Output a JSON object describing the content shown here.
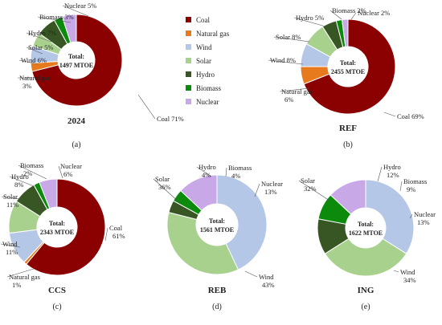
{
  "legend": [
    {
      "name": "Coal",
      "color": "#8b0000"
    },
    {
      "name": "Natural gas",
      "color": "#e87a1e"
    },
    {
      "name": "Wind",
      "color": "#b4c7e7"
    },
    {
      "name": "Solar",
      "color": "#a9d18e"
    },
    {
      "name": "Hydro",
      "color": "#375623"
    },
    {
      "name": "Biomass",
      "color": "#0b8a0b"
    },
    {
      "name": "Nuclear",
      "color": "#c9a8e8"
    }
  ],
  "chart_data": [
    {
      "type": "pie",
      "name": "2024",
      "tag": "(a)",
      "center_title": "Total:",
      "center_value": "1497 MTOE",
      "slices": [
        {
          "name": "Coal",
          "value": 71,
          "label": "Coal 71%"
        },
        {
          "name": "Natural gas",
          "value": 3,
          "label": "Natural gas 3%"
        },
        {
          "name": "Wind",
          "value": 6,
          "label": "Wind 6%"
        },
        {
          "name": "Solar",
          "value": 5,
          "label": "Solar 5%"
        },
        {
          "name": "Hydro",
          "value": 7,
          "label": "Hydro 7%"
        },
        {
          "name": "Biomass",
          "value": 3,
          "label": "Biomass 3%"
        },
        {
          "name": "Nuclear",
          "value": 5,
          "label": "Nuclear 5%"
        }
      ]
    },
    {
      "type": "pie",
      "name": "REF",
      "tag": "(b)",
      "center_title": "Total:",
      "center_value": "2455 MTOE",
      "slices": [
        {
          "name": "Coal",
          "value": 69,
          "label": "Coal 69%"
        },
        {
          "name": "Natural gas",
          "value": 6,
          "label": "Natural gas 6%"
        },
        {
          "name": "Wind",
          "value": 8,
          "label": "Wind 8%"
        },
        {
          "name": "Solar",
          "value": 8,
          "label": "Solar 8%"
        },
        {
          "name": "Hydro",
          "value": 5,
          "label": "Hydro 5%"
        },
        {
          "name": "Biomass",
          "value": 2,
          "label": "Biomass 2%"
        },
        {
          "name": "Nuclear",
          "value": 2,
          "label": "Nuclear 2%"
        }
      ]
    },
    {
      "type": "pie",
      "name": "CCS",
      "tag": "(c)",
      "center_title": "Total:",
      "center_value": "2343 MTOE",
      "slices": [
        {
          "name": "Coal",
          "value": 61,
          "label": "Coal 61%"
        },
        {
          "name": "Natural gas",
          "value": 1,
          "label": "Natural gas 1%"
        },
        {
          "name": "Wind",
          "value": 11,
          "label": "Wind 11%"
        },
        {
          "name": "Solar",
          "value": 11,
          "label": "Solar 11%"
        },
        {
          "name": "Hydro",
          "value": 8,
          "label": "Hydro 8%"
        },
        {
          "name": "Biomass",
          "value": 2,
          "label": "Biomass 2%"
        },
        {
          "name": "Nuclear",
          "value": 6,
          "label": "Nuclear 6%"
        }
      ]
    },
    {
      "type": "pie",
      "name": "REB",
      "tag": "(d)",
      "center_title": "Total:",
      "center_value": "1561 MTOE",
      "slices": [
        {
          "name": "Wind",
          "value": 43,
          "label": "Wind 43%"
        },
        {
          "name": "Solar",
          "value": 36,
          "label": "Solar 36%"
        },
        {
          "name": "Hydro",
          "value": 4,
          "label": "Hydro 4%"
        },
        {
          "name": "Biomass",
          "value": 4,
          "label": "Biomass 4%"
        },
        {
          "name": "Nuclear",
          "value": 13,
          "label": "Nuclear 13%"
        }
      ]
    },
    {
      "type": "pie",
      "name": "ING",
      "tag": "(e)",
      "center_title": "Total:",
      "center_value": "1622 MTOE",
      "slices": [
        {
          "name": "Wind",
          "value": 34,
          "label": "Wind 34%"
        },
        {
          "name": "Solar",
          "value": 32,
          "label": "Solar 32%"
        },
        {
          "name": "Hydro",
          "value": 12,
          "label": "Hydro 12%"
        },
        {
          "name": "Biomass",
          "value": 9,
          "label": "Biomass 9%"
        },
        {
          "name": "Nuclear",
          "value": 13,
          "label": "Nuclear 13%"
        }
      ]
    }
  ]
}
